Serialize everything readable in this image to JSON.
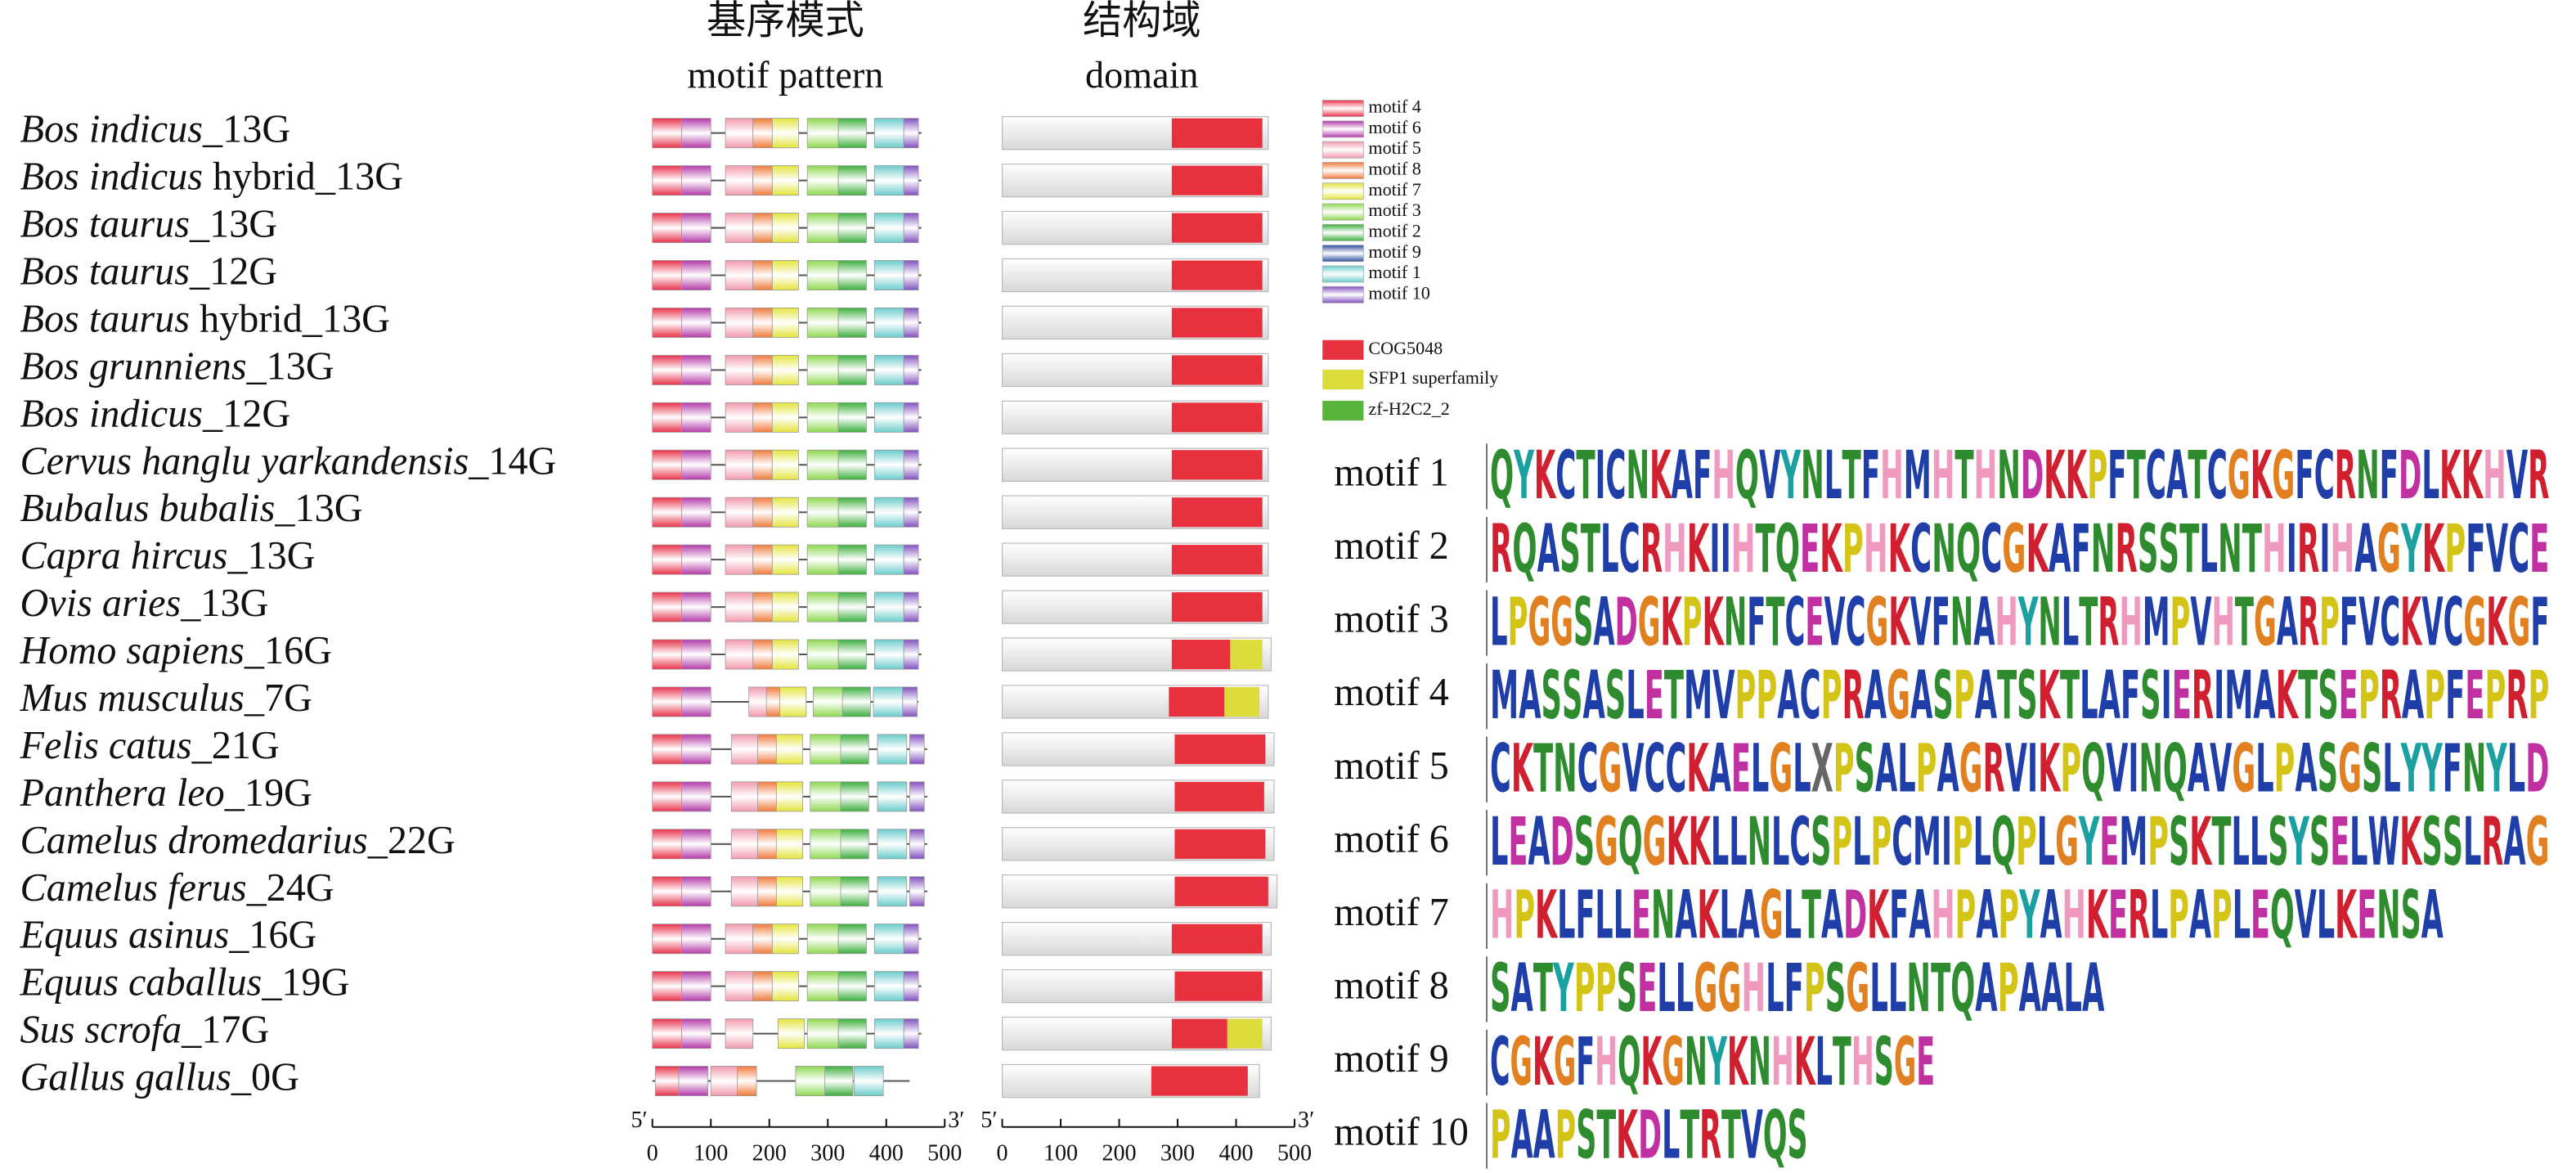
{
  "headers": {
    "motif_cn": "基序模式",
    "motif_en": "motif pattern",
    "domain_cn": "结构域",
    "domain_en": "domain"
  },
  "motif_legend": [
    {
      "name": "motif 4",
      "color": "#e8324a"
    },
    {
      "name": "motif 6",
      "color": "#b23aa8"
    },
    {
      "name": "motif 5",
      "color": "#f29aae"
    },
    {
      "name": "motif 8",
      "color": "#f07a3c"
    },
    {
      "name": "motif 7",
      "color": "#e4e43c"
    },
    {
      "name": "motif 3",
      "color": "#8ed850"
    },
    {
      "name": "motif 2",
      "color": "#3cae3c"
    },
    {
      "name": "motif 9",
      "color": "#2e4ea0"
    },
    {
      "name": "motif 1",
      "color": "#6ccccc"
    },
    {
      "name": "motif 10",
      "color": "#8250c0"
    }
  ],
  "motif_order": [
    0,
    1,
    2,
    3,
    4,
    5,
    6,
    8,
    9
  ],
  "motif_widths": [
    50,
    50,
    47,
    33,
    45,
    53,
    48,
    50,
    25
  ],
  "domain_legend": [
    {
      "name": "COG5048",
      "color": "#e8313f"
    },
    {
      "name": "SFP1 superfamily",
      "color": "#dcdc3c"
    },
    {
      "name": "zf-H2C2_2",
      "color": "#5ab43c"
    }
  ],
  "rows": [
    {
      "italic": "Bos indicus",
      "rest": "_13G",
      "length": 460,
      "motifs": [
        0,
        50,
        125,
        172,
        205,
        265,
        318,
        380,
        430
      ],
      "domain_length": 455,
      "domains": [
        {
          "type": 0,
          "start": 290,
          "end": 445
        }
      ]
    },
    {
      "italic": "Bos indicus",
      "rest": " hybrid_13G",
      "length": 460,
      "motifs": [
        0,
        50,
        125,
        172,
        205,
        265,
        318,
        380,
        430
      ],
      "domain_length": 455,
      "domains": [
        {
          "type": 0,
          "start": 290,
          "end": 445
        }
      ]
    },
    {
      "italic": "Bos taurus",
      "rest": "_13G",
      "length": 460,
      "motifs": [
        0,
        50,
        125,
        172,
        205,
        265,
        318,
        380,
        430
      ],
      "domain_length": 455,
      "domains": [
        {
          "type": 0,
          "start": 290,
          "end": 445
        }
      ]
    },
    {
      "italic": "Bos taurus",
      "rest": "_12G",
      "length": 460,
      "motifs": [
        0,
        50,
        125,
        172,
        205,
        265,
        318,
        380,
        430
      ],
      "domain_length": 455,
      "domains": [
        {
          "type": 0,
          "start": 290,
          "end": 445
        }
      ]
    },
    {
      "italic": "Bos taurus",
      "rest": " hybrid_13G",
      "length": 460,
      "motifs": [
        0,
        50,
        125,
        172,
        205,
        265,
        318,
        380,
        430
      ],
      "domain_length": 455,
      "domains": [
        {
          "type": 0,
          "start": 290,
          "end": 445
        }
      ]
    },
    {
      "italic": "Bos grunniens",
      "rest": "_13G",
      "length": 460,
      "motifs": [
        0,
        50,
        125,
        172,
        205,
        265,
        318,
        380,
        430
      ],
      "domain_length": 455,
      "domains": [
        {
          "type": 0,
          "start": 290,
          "end": 445
        }
      ]
    },
    {
      "italic": "Bos indicus",
      "rest": "_12G",
      "length": 460,
      "motifs": [
        0,
        50,
        125,
        172,
        205,
        265,
        318,
        380,
        430
      ],
      "domain_length": 455,
      "domains": [
        {
          "type": 0,
          "start": 290,
          "end": 445
        }
      ]
    },
    {
      "italic": "Cervus hanglu yarkandensis",
      "rest": "_14G",
      "length": 460,
      "motifs": [
        0,
        50,
        125,
        172,
        205,
        265,
        318,
        380,
        430
      ],
      "domain_length": 455,
      "domains": [
        {
          "type": 0,
          "start": 290,
          "end": 445
        }
      ]
    },
    {
      "italic": "Bubalus bubalis",
      "rest": "_13G",
      "length": 460,
      "motifs": [
        0,
        50,
        125,
        172,
        205,
        265,
        318,
        380,
        430
      ],
      "domain_length": 455,
      "domains": [
        {
          "type": 0,
          "start": 290,
          "end": 445
        }
      ]
    },
    {
      "italic": "Capra hircus",
      "rest": "_13G",
      "length": 460,
      "motifs": [
        0,
        50,
        125,
        172,
        205,
        265,
        318,
        380,
        430
      ],
      "domain_length": 455,
      "domains": [
        {
          "type": 0,
          "start": 290,
          "end": 445
        }
      ]
    },
    {
      "italic": "Ovis aries",
      "rest": "_13G",
      "length": 460,
      "motifs": [
        0,
        50,
        125,
        172,
        205,
        265,
        318,
        380,
        430
      ],
      "domain_length": 455,
      "domains": [
        {
          "type": 0,
          "start": 290,
          "end": 445
        }
      ]
    },
    {
      "italic": "Homo sapiens",
      "rest": "_16G",
      "length": 460,
      "motifs": [
        0,
        50,
        125,
        172,
        205,
        265,
        318,
        380,
        430
      ],
      "domain_length": 460,
      "domains": [
        {
          "type": 0,
          "start": 290,
          "end": 390
        },
        {
          "type": 1,
          "start": 390,
          "end": 445
        }
      ]
    },
    {
      "italic": "Mus musculus",
      "rest": "_7G",
      "length": 455,
      "motifs": [
        0,
        50,
        165,
        195,
        218,
        275,
        325,
        378,
        428
      ],
      "domain_length": 455,
      "domains": [
        {
          "type": 0,
          "start": 285,
          "end": 380
        },
        {
          "type": 1,
          "start": 380,
          "end": 440
        }
      ]
    },
    {
      "italic": "Felis catus",
      "rest": "_21G",
      "length": 470,
      "motifs": [
        0,
        50,
        135,
        180,
        212,
        270,
        322,
        385,
        440
      ],
      "domain_length": 465,
      "domains": [
        {
          "type": 0,
          "start": 295,
          "end": 450
        }
      ]
    },
    {
      "italic": "Panthera leo",
      "rest": "_19G",
      "length": 470,
      "motifs": [
        0,
        50,
        135,
        180,
        212,
        270,
        322,
        385,
        440
      ],
      "domain_length": 465,
      "domains": [
        {
          "type": 0,
          "start": 295,
          "end": 448
        }
      ]
    },
    {
      "italic": "Camelus dromedarius",
      "rest": "_22G",
      "length": 470,
      "motifs": [
        0,
        50,
        135,
        180,
        212,
        270,
        322,
        385,
        440
      ],
      "domain_length": 465,
      "domains": [
        {
          "type": 0,
          "start": 295,
          "end": 450
        }
      ]
    },
    {
      "italic": "Camelus ferus",
      "rest": "_24G",
      "length": 470,
      "motifs": [
        0,
        50,
        135,
        180,
        212,
        270,
        322,
        385,
        440
      ],
      "domain_length": 470,
      "domains": [
        {
          "type": 0,
          "start": 295,
          "end": 455
        }
      ]
    },
    {
      "italic": "Equus asinus",
      "rest": "_16G",
      "length": 460,
      "motifs": [
        0,
        50,
        125,
        172,
        205,
        265,
        318,
        380,
        430
      ],
      "domain_length": 460,
      "domains": [
        {
          "type": 0,
          "start": 290,
          "end": 445
        }
      ]
    },
    {
      "italic": "Equus caballus",
      "rest": "_19G",
      "length": 460,
      "motifs": [
        0,
        50,
        125,
        172,
        205,
        265,
        318,
        380,
        430
      ],
      "domain_length": 460,
      "domains": [
        {
          "type": 0,
          "start": 295,
          "end": 445
        }
      ]
    },
    {
      "italic": "Sus scrofa",
      "rest": "_17G",
      "length": 460,
      "motifs": [
        0,
        50,
        125,
        null,
        215,
        265,
        318,
        380,
        430
      ],
      "domain_length": 460,
      "domains": [
        {
          "type": 0,
          "start": 290,
          "end": 385
        },
        {
          "type": 1,
          "start": 385,
          "end": 445
        }
      ]
    },
    {
      "italic": "Gallus gallus",
      "rest": "_0G",
      "length": 440,
      "motifs": [
        5,
        45,
        100,
        145,
        null,
        245,
        295,
        345,
        null
      ],
      "domain_length": 440,
      "domains": [
        {
          "type": 0,
          "start": 255,
          "end": 420
        }
      ]
    }
  ],
  "motif_axis": {
    "start_label": "5′",
    "end_label": "3′",
    "lim": [
      0,
      500
    ],
    "ticks": [
      0,
      100,
      200,
      300,
      400,
      500
    ]
  },
  "domain_axis": {
    "start_label": "5′",
    "end_label": "3′",
    "lim": [
      0,
      500
    ],
    "ticks": [
      0,
      100,
      200,
      300,
      400,
      500
    ]
  },
  "logos": [
    {
      "label": "motif 1",
      "sequence": "QYKCTICNKAFHQVYNLTFHMHTHNDKKPFTCATCGKGFCRNFDLKKHVR"
    },
    {
      "label": "motif 2",
      "sequence": "RQASTLCRHKIIHTQEKPHKCNQCGKAFNRSSTLNTHIRIHAGYKPFVCE"
    },
    {
      "label": "motif 3",
      "sequence": "LPGGSADGKPKNFTCEVCGKVFNAHYNLTRHMPVHTGARPFVCKVCGKGF"
    },
    {
      "label": "motif 4",
      "sequence": "MASSASLETMVPPACPRAGASPATSKTLAFSIERIMAKTSEPRAPFEPRP"
    },
    {
      "label": "motif 5",
      "sequence": "CKTNCGVCCKAELGLXPSALPAGRVIKPQVINQAVGLPASGSLYYFNYLD"
    },
    {
      "label": "motif 6",
      "sequence": "LEADSGQGKKLLNLCSPLPCMIPLQPLGYEMPSKTLLSYSELWKSSLRAG"
    },
    {
      "label": "motif 7",
      "sequence": "HPKLFLLENAKLAGLTADKFAHPAPYAHKERLPAPLEQVLKENSA"
    },
    {
      "label": "motif 8",
      "sequence": "SATYPPSELLGGHLFPSGLLNTQAPAALA"
    },
    {
      "label": "motif 9",
      "sequence": "CGKGFHQKGNYKNHKLTHSGE"
    },
    {
      "label": "motif 10",
      "sequence": "PAAPSTKDLTRTVQS"
    }
  ]
}
